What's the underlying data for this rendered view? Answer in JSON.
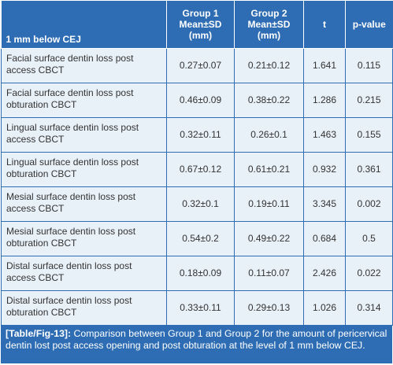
{
  "table": {
    "headers": [
      "1 mm below CEJ",
      "Group 1\nMean±SD\n(mm)",
      "Group 2\nMean±SD\n(mm)",
      "t",
      "p-value"
    ],
    "rows": [
      [
        "Facial surface dentin loss post access CBCT",
        "0.27±0.07",
        "0.21±0.12",
        "1.641",
        "0.115"
      ],
      [
        "Facial surface dentin loss post obturation CBCT",
        "0.46±0.09",
        "0.38±0.22",
        "1.286",
        "0.215"
      ],
      [
        "Lingual surface dentin loss post access CBCT",
        "0.32±0.11",
        "0.26±0.1",
        "1.463",
        "0.155"
      ],
      [
        "Lingual surface dentin loss post obturation CBCT",
        "0.67±0.12",
        "0.61±0.21",
        "0.932",
        "0.361"
      ],
      [
        "Mesial surface dentin loss post access CBCT",
        "0.32±0.1",
        "0.19±0.11",
        "3.345",
        "0.002"
      ],
      [
        "Mesial surface dentin loss post obturation CBCT",
        "0.54±0.2",
        "0.49±0.22",
        "0.684",
        "0.5"
      ],
      [
        "Distal surface dentin loss post access CBCT",
        "0.18±0.09",
        "0.11±0.07",
        "2.426",
        "0.022"
      ],
      [
        "Distal surface dentin loss post obturation CBCT",
        "0.33±0.11",
        "0.29±0.13",
        "1.026",
        "0.314"
      ]
    ]
  },
  "caption": {
    "tag": "[Table/Fig-13]:",
    "text": " Comparison between Group 1 and Group 2 for the amount of pericervical dentin lost post access opening and post obturation at the level of 1 mm below CEJ."
  },
  "colors": {
    "header_bg": "#2e6db4",
    "cell_bg": "#e8f0f8",
    "text": "#333333"
  }
}
